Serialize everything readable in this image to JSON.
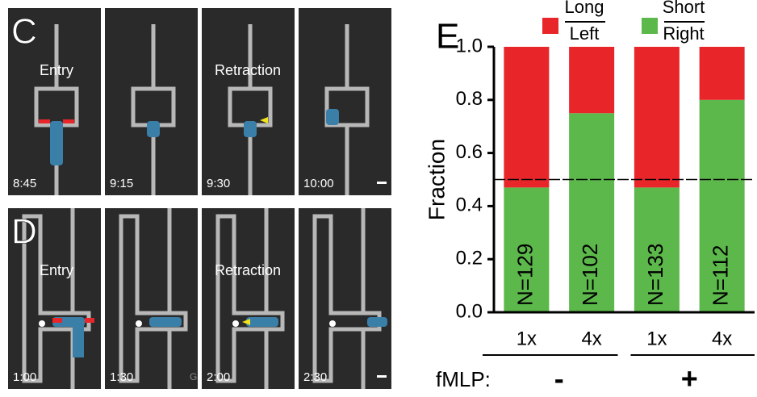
{
  "panel_c": {
    "letter": "C",
    "frames": [
      {
        "label": "Entry",
        "time": "8:45"
      },
      {
        "time": "9:15"
      },
      {
        "label": "Retraction",
        "time": "9:30"
      },
      {
        "time": "10:00"
      }
    ]
  },
  "panel_d": {
    "letter": "D",
    "frames": [
      {
        "label": "Entry",
        "time": "1:00"
      },
      {
        "time": "1:30",
        "mark": "G"
      },
      {
        "label": "Retraction",
        "time": "2:00"
      },
      {
        "time": "2:30"
      }
    ]
  },
  "chart_data": {
    "type": "stacked_bar",
    "panel_letter": "E",
    "ylabel": "Fraction",
    "categories": [
      "1x",
      "4x",
      "1x",
      "4x"
    ],
    "series": [
      {
        "name": "Short",
        "name_below": "Right",
        "color": "#5cb84a",
        "values": [
          0.47,
          0.75,
          0.47,
          0.8
        ]
      },
      {
        "name": "Long",
        "name_below": "Left",
        "color": "#e8262a",
        "values": [
          0.53,
          0.25,
          0.53,
          0.2
        ]
      }
    ],
    "bar_labels": [
      "N=129",
      "N=102",
      "N=133",
      "N=112"
    ],
    "ylim": [
      0,
      1
    ],
    "yticks": [
      {
        "value": 0,
        "label": "0.0"
      },
      0.2,
      0.4,
      0.6,
      0.8,
      {
        "value": 1,
        "label": "1.0"
      }
    ],
    "reference_line": 0.5,
    "group_title": "fMLP:",
    "groups": [
      {
        "label": "-",
        "size": 2
      },
      {
        "label": "+",
        "size": 2
      }
    ]
  }
}
